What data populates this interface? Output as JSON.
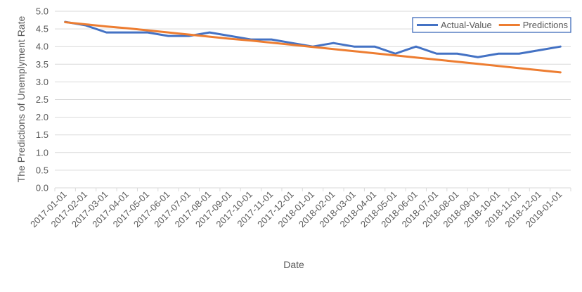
{
  "chart_data": {
    "type": "line",
    "xlabel": "Date",
    "ylabel": "The Predictions of Unemplyment Rate",
    "ylim": [
      0,
      5
    ],
    "yticks": [
      "0.0",
      "0.5",
      "1.0",
      "1.5",
      "2.0",
      "2.5",
      "3.0",
      "3.5",
      "4.0",
      "4.5",
      "5.0"
    ],
    "grid": true,
    "legend": "top-right",
    "categories": [
      "2017-01-01",
      "2017-02-01",
      "2017-03-01",
      "2017-04-01",
      "2017-05-01",
      "2017-06-01",
      "2017-07-01",
      "2017-08-01",
      "2017-09-01",
      "2017-10-01",
      "2017-11-01",
      "2017-12-01",
      "2018-01-01",
      "2018-02-01",
      "2018-03-01",
      "2018-04-01",
      "2018-05-01",
      "2018-06-01",
      "2018-07-01",
      "2018-08-01",
      "2018-09-01",
      "2018-10-01",
      "2018-11-01",
      "2018-12-01",
      "2019-01-01"
    ],
    "series": [
      {
        "name": "Actual-Value",
        "color": "#4472c4",
        "values": [
          4.7,
          4.6,
          4.4,
          4.4,
          4.4,
          4.3,
          4.3,
          4.4,
          4.3,
          4.2,
          4.2,
          4.1,
          4.0,
          4.1,
          4.0,
          4.0,
          3.8,
          4.0,
          3.8,
          3.8,
          3.7,
          3.8,
          3.8,
          3.9,
          4.0
        ]
      },
      {
        "name": "Predictions",
        "color": "#ed7d31",
        "values": [
          4.69,
          4.63,
          4.57,
          4.52,
          4.46,
          4.4,
          4.34,
          4.28,
          4.22,
          4.17,
          4.11,
          4.05,
          3.99,
          3.93,
          3.87,
          3.81,
          3.75,
          3.69,
          3.63,
          3.57,
          3.51,
          3.45,
          3.39,
          3.33,
          3.27
        ]
      }
    ]
  }
}
